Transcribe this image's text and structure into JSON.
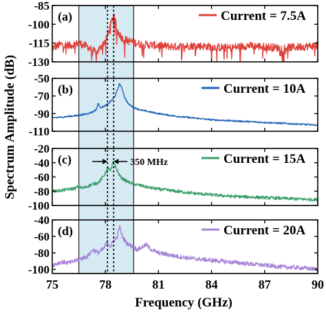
{
  "figure": {
    "xlabel": "Frequency (GHz)",
    "ylabel": "Spectrum Amplitude (dB)"
  },
  "chart_data": {
    "type": "line",
    "xlim": [
      75,
      90
    ],
    "x_ticks": [
      75,
      78,
      81,
      84,
      87,
      90
    ],
    "x_tick_labels": [
      "75",
      "78",
      "81",
      "84",
      "87",
      "90"
    ],
    "shaded_band": [
      76.5,
      79.6
    ],
    "vertical_markers": [
      78.12,
      78.47
    ],
    "grid": false,
    "panels": [
      {
        "panel_label": "(a)",
        "legend": "Current = 7.5A",
        "color": "#e0403a",
        "ylim": [
          -130,
          -85
        ],
        "y_ticks": [
          -85,
          -100,
          -115,
          -130
        ],
        "y_tick_labels": [
          "-85",
          "-100",
          "-115",
          "-130"
        ],
        "x": [
          75,
          75.5,
          76,
          76.5,
          77,
          77.5,
          78,
          78.2,
          78.35,
          78.45,
          78.55,
          78.7,
          79,
          79.5,
          80,
          81,
          82,
          83,
          84,
          85,
          86,
          87,
          88,
          89,
          90
        ],
        "y": [
          -119,
          -116,
          -117,
          -115,
          -118,
          -123,
          -113,
          -106,
          -98,
          -93,
          -97,
          -106,
          -112,
          -114,
          -116,
          -117,
          -118,
          -117,
          -118,
          -119,
          -117,
          -118,
          -119,
          -118,
          -117
        ]
      },
      {
        "panel_label": "(b)",
        "legend": "Current = 10A",
        "color": "#1f62b7",
        "ylim": [
          -110,
          -50
        ],
        "y_ticks": [
          -50,
          -70,
          -90,
          -110
        ],
        "y_tick_labels": [
          "-50",
          "-70",
          "-90",
          "-110"
        ],
        "x": [
          75,
          75.5,
          76,
          76.5,
          77,
          77.3,
          77.5,
          77.6,
          77.7,
          77.9,
          78.1,
          78.3,
          78.5,
          78.65,
          78.8,
          78.95,
          79.1,
          79.3,
          79.6,
          80,
          80.5,
          81,
          82,
          83,
          84,
          85,
          86,
          87,
          88,
          89,
          90
        ],
        "y": [
          -95,
          -94,
          -93,
          -92,
          -90,
          -88,
          -85,
          -78,
          -83,
          -82,
          -80,
          -76,
          -72,
          -65,
          -56,
          -62,
          -72,
          -79,
          -83,
          -86,
          -88,
          -90,
          -93,
          -95,
          -97,
          -98,
          -99,
          -100,
          -101,
          -102,
          -103
        ]
      },
      {
        "panel_label": "(c)",
        "legend": "Current = 15A",
        "color": "#3a9e6b",
        "ylim": [
          -100,
          -20
        ],
        "y_ticks": [
          -20,
          -40,
          -60,
          -80,
          -100
        ],
        "y_tick_labels": [
          "-20",
          "-40",
          "-60",
          "-80",
          "-100"
        ],
        "annotation": "350 MHz",
        "x": [
          75,
          75.5,
          76,
          76.3,
          76.5,
          76.7,
          77,
          77.3,
          77.6,
          77.8,
          78,
          78.15,
          78.3,
          78.45,
          78.6,
          78.8,
          79,
          79.3,
          79.6,
          80,
          80.5,
          81,
          82,
          83,
          84,
          85,
          86,
          87,
          88,
          89,
          90
        ],
        "y": [
          -80,
          -79,
          -77,
          -76,
          -73,
          -76,
          -73,
          -70,
          -68,
          -62,
          -55,
          -47,
          -52,
          -38,
          -47,
          -58,
          -63,
          -67,
          -70,
          -72,
          -75,
          -77,
          -80,
          -83,
          -85,
          -87,
          -88,
          -89,
          -90,
          -91,
          -92
        ]
      },
      {
        "panel_label": "(d)",
        "legend": "Current = 20A",
        "color": "#a882d8",
        "ylim": [
          -105,
          -40
        ],
        "y_ticks": [
          -40,
          -60,
          -80,
          -100
        ],
        "y_tick_labels": [
          "-40",
          "-60",
          "-80",
          "-100"
        ],
        "x": [
          75,
          75.5,
          76,
          76.5,
          77,
          77.3,
          77.6,
          77.9,
          78.1,
          78.3,
          78.5,
          78.65,
          78.8,
          78.95,
          79.2,
          79.5,
          79.8,
          80,
          80.3,
          80.6,
          81,
          82,
          83,
          84,
          85,
          86,
          87,
          88,
          89,
          90
        ],
        "y": [
          -95,
          -91,
          -92,
          -88,
          -84,
          -76,
          -80,
          -75,
          -67,
          -72,
          -64,
          -62,
          -48,
          -60,
          -68,
          -72,
          -76,
          -74,
          -70,
          -76,
          -80,
          -84,
          -87,
          -89,
          -91,
          -93,
          -95,
          -97,
          -98,
          -100
        ]
      }
    ]
  }
}
